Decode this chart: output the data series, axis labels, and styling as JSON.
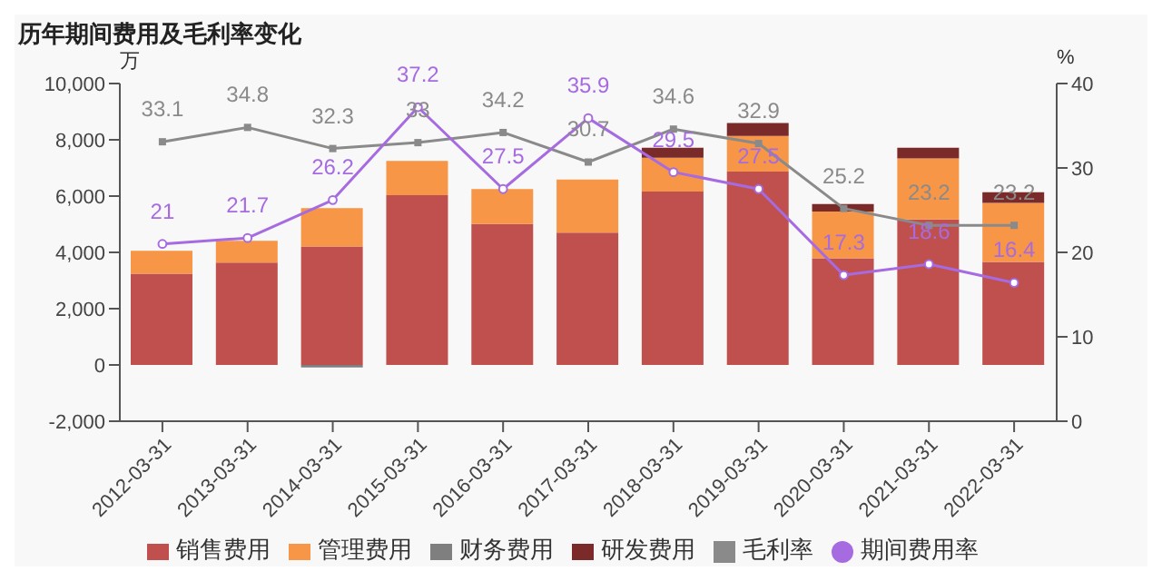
{
  "chart_data": {
    "type": "bar",
    "title": "历年期间费用及毛利率变化",
    "ylabel": "万",
    "y2label": "%",
    "categories": [
      "2012-03-31",
      "2013-03-31",
      "2014-03-31",
      "2015-03-31",
      "2016-03-31",
      "2017-03-31",
      "2018-03-31",
      "2019-03-31",
      "2020-03-31",
      "2021-03-31",
      "2022-03-31"
    ],
    "stacked": true,
    "legend": "bottom",
    "grid": false,
    "marker": "circle",
    "ylim": [
      -2000,
      10000
    ],
    "yticks": [
      {
        "value": -2000,
        "label": "-2,000"
      },
      0,
      {
        "value": 2000,
        "label": "2,000"
      },
      {
        "value": 4000,
        "label": "4,000"
      },
      {
        "value": 6000,
        "label": "6,000"
      },
      {
        "value": 8000,
        "label": "8,000"
      },
      {
        "value": 10000,
        "label": "10,000"
      }
    ],
    "y2lim": [
      0,
      40
    ],
    "y2ticks": [
      0,
      10,
      20,
      30,
      40
    ],
    "series": [
      {
        "name": "销售费用",
        "color": "#c0504d",
        "values": [
          3240,
          3640,
          4210,
          6030,
          5010,
          4700,
          6160,
          6870,
          3790,
          5170,
          3660
        ]
      },
      {
        "name": "管理费用",
        "color": "#f79646",
        "values": [
          820,
          770,
          1360,
          1220,
          1240,
          1890,
          1200,
          1270,
          1660,
          2170,
          2100
        ]
      },
      {
        "name": "财务费用",
        "color": "#7f7f7f",
        "values": [
          null,
          null,
          -90,
          null,
          null,
          null,
          null,
          null,
          null,
          null,
          null
        ]
      },
      {
        "name": "研发费用",
        "color": "#7b2a2a",
        "values": [
          null,
          null,
          null,
          null,
          null,
          null,
          360,
          460,
          270,
          380,
          380
        ]
      },
      {
        "name": "毛利率",
        "type": "line",
        "axis": "y2",
        "color": "#8a8a8a",
        "marker": "square",
        "values": [
          33.1,
          34.8,
          32.3,
          33,
          34.2,
          30.7,
          34.6,
          32.9,
          25.2,
          23.2,
          23.2
        ],
        "value_labels": [
          "33.1",
          "34.8",
          "32.3",
          "33",
          "34.2",
          "30.7",
          "34.6",
          "32.9",
          "25.2",
          "23.2",
          "23.2"
        ]
      },
      {
        "name": "期间费用率",
        "type": "line",
        "axis": "y2",
        "color": "#a66be0",
        "values": [
          21,
          21.7,
          26.2,
          37.2,
          27.5,
          35.9,
          29.5,
          27.5,
          17.3,
          18.6,
          16.4
        ],
        "value_labels": [
          "21",
          "21.7",
          "26.2",
          "37.2",
          "27.5",
          "35.9",
          "29.5",
          "27.5",
          "17.3",
          "18.6",
          "16.4"
        ]
      }
    ]
  }
}
